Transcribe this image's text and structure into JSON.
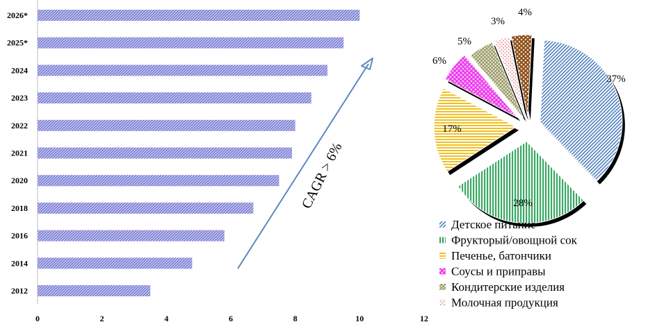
{
  "chart_data": [
    {
      "type": "bar",
      "orientation": "horizontal",
      "categories": [
        "2012",
        "2014",
        "2016",
        "2018",
        "2020",
        "2021",
        "2022",
        "2023",
        "2024",
        "2025*",
        "2026*"
      ],
      "values": [
        3.5,
        4.8,
        5.8,
        6.7,
        7.5,
        7.9,
        8.0,
        8.5,
        9.0,
        9.5,
        10.0
      ],
      "xlim": [
        0,
        12
      ],
      "xticks": [
        "0",
        "2",
        "4",
        "6",
        "8",
        "10",
        "12"
      ],
      "bar_color": "#8a8ee0",
      "annotation": "CAGR > 6%",
      "title": "",
      "xlabel": "",
      "ylabel": ""
    },
    {
      "type": "pie",
      "labels": [
        "Детское питание",
        "Фрукторый/овощной сок",
        "Печенье, батончики",
        "Соусы и приправы",
        "Кондитерские изделия",
        "Молочная продукция",
        ""
      ],
      "values": [
        37,
        28,
        17,
        6,
        5,
        3,
        4
      ],
      "value_labels": [
        "37%",
        "28%",
        "17%",
        "6%",
        "5%",
        "3%",
        "4%"
      ],
      "colors": [
        "#4f7fc0",
        "#3aa864",
        "#f0c020",
        "#ee40ee",
        "#a8a878",
        "#f0a0a0",
        "#b06020"
      ],
      "legend": [
        "Детское питание",
        "Фрукторый/овощной сок",
        "Печенье, батончики",
        "Соусы и приправы",
        "Кондитерские изделия",
        "Молочная продукция"
      ],
      "legend_position": "bottom"
    }
  ]
}
